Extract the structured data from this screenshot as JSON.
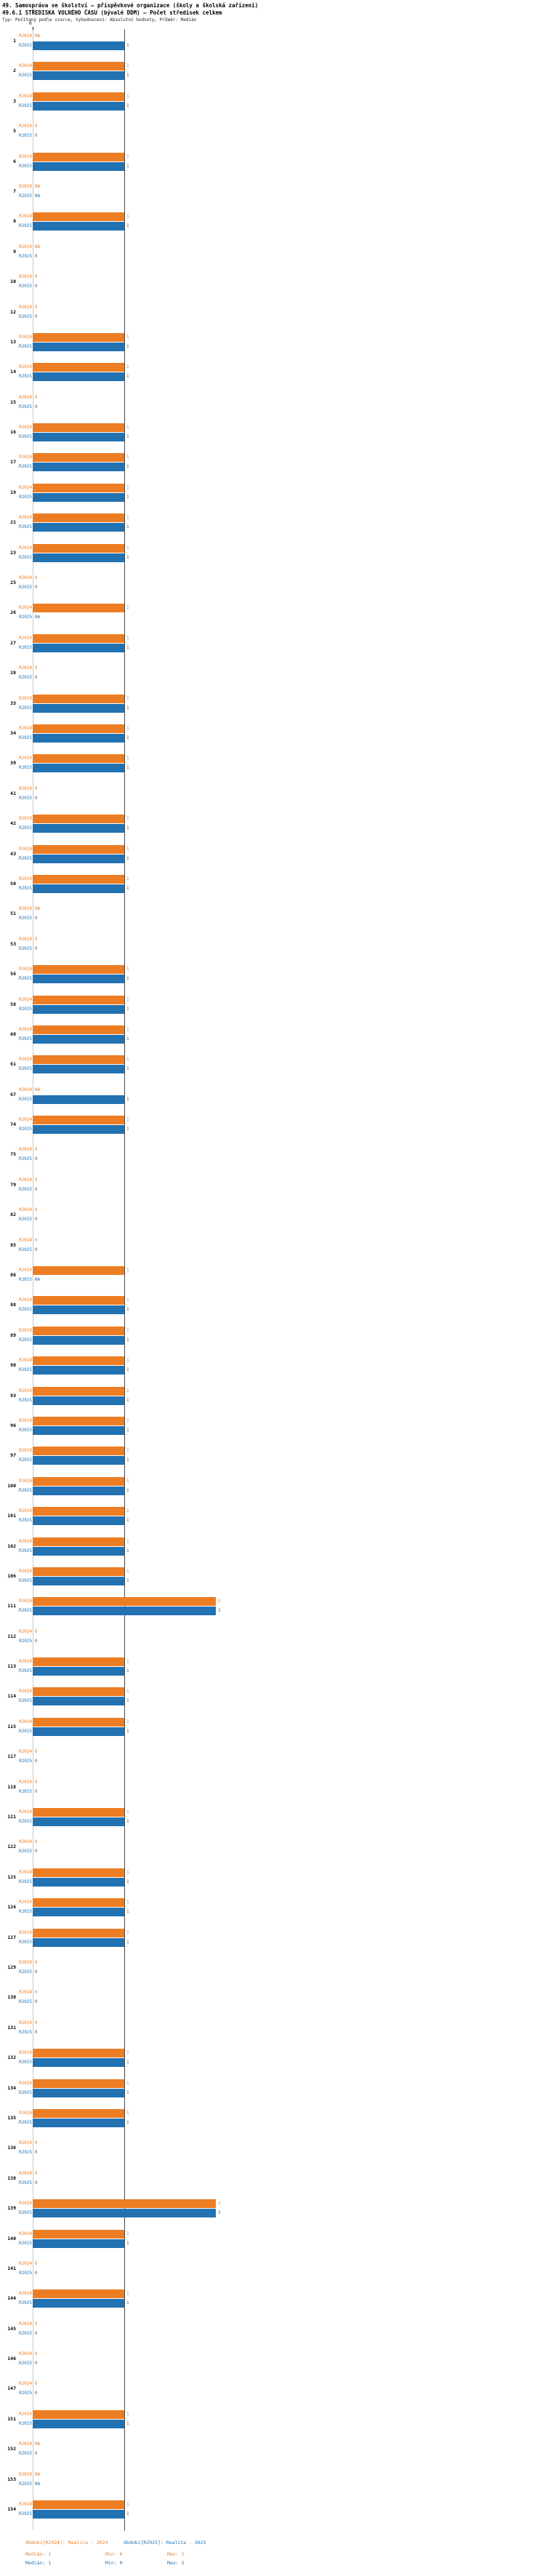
{
  "header": {
    "title_line1": "49. Samospráva ve školství – příspěvkové organizace (školy a školská zařízení)",
    "title_line2": "49.6.1 STŘEDISKA VOLNÉHO ČASU (bývalé DDM) – Počet středisek celkem",
    "meta_line": "Typ: Počítaný podle vzorce, Vyhodnocení: Absolutní hodnoty, Průměr: Medián"
  },
  "chart_data": {
    "type": "bar",
    "orientation": "horizontal",
    "title": "49.6.1 STŘEDISKA VOLNÉHO ČASU (bývalé DDM) – Počet středisek celkem",
    "axis": {
      "tick_label": "0",
      "xlim": [
        0,
        2
      ],
      "median_reference": 1,
      "grid": false
    },
    "series_meta": [
      {
        "key": "R2024",
        "label": "R2024",
        "color": "#ed7d23",
        "period_label": "Období[R2024]: Realita - 2024",
        "median": 1,
        "min": 0,
        "max": 2
      },
      {
        "key": "R2025",
        "label": "R2025",
        "color": "#2272b2",
        "period_label": "Období[R2025]: Realita - 2025",
        "median": 1,
        "min": 0,
        "max": 2
      }
    ],
    "rows": [
      {
        "id": "1",
        "R2024": "NA",
        "R2025": 1
      },
      {
        "id": "2",
        "R2024": 1,
        "R2025": 1
      },
      {
        "id": "3",
        "R2024": 1,
        "R2025": 1
      },
      {
        "id": "5",
        "R2024": 0,
        "R2025": 0
      },
      {
        "id": "6",
        "R2024": 1,
        "R2025": 1
      },
      {
        "id": "7",
        "R2024": "NA",
        "R2025": "NA"
      },
      {
        "id": "8",
        "R2024": 1,
        "R2025": 1
      },
      {
        "id": "9",
        "R2024": "NA",
        "R2025": 0
      },
      {
        "id": "10",
        "R2024": 0,
        "R2025": 0
      },
      {
        "id": "12",
        "R2024": 0,
        "R2025": 0
      },
      {
        "id": "13",
        "R2024": 1,
        "R2025": 1
      },
      {
        "id": "14",
        "R2024": 1,
        "R2025": 1
      },
      {
        "id": "15",
        "R2024": 0,
        "R2025": 0
      },
      {
        "id": "16",
        "R2024": 1,
        "R2025": 1
      },
      {
        "id": "17",
        "R2024": 1,
        "R2025": 1
      },
      {
        "id": "19",
        "R2024": 1,
        "R2025": 1
      },
      {
        "id": "21",
        "R2024": 1,
        "R2025": 1
      },
      {
        "id": "23",
        "R2024": 1,
        "R2025": 1
      },
      {
        "id": "25",
        "R2024": 0,
        "R2025": 0
      },
      {
        "id": "26",
        "R2024": 1,
        "R2025": "NA"
      },
      {
        "id": "27",
        "R2024": 1,
        "R2025": 1
      },
      {
        "id": "28",
        "R2024": 0,
        "R2025": 0
      },
      {
        "id": "33",
        "R2024": 1,
        "R2025": 1
      },
      {
        "id": "34",
        "R2024": 1,
        "R2025": 1
      },
      {
        "id": "39",
        "R2024": 1,
        "R2025": 1
      },
      {
        "id": "41",
        "R2024": 0,
        "R2025": 0
      },
      {
        "id": "42",
        "R2024": 1,
        "R2025": 1
      },
      {
        "id": "43",
        "R2024": 1,
        "R2025": 1
      },
      {
        "id": "50",
        "R2024": 1,
        "R2025": 1
      },
      {
        "id": "51",
        "R2024": "NA",
        "R2025": 0
      },
      {
        "id": "53",
        "R2024": 0,
        "R2025": 0
      },
      {
        "id": "56",
        "R2024": 1,
        "R2025": 1
      },
      {
        "id": "58",
        "R2024": 1,
        "R2025": 1
      },
      {
        "id": "60",
        "R2024": 1,
        "R2025": 1
      },
      {
        "id": "61",
        "R2024": 1,
        "R2025": 1
      },
      {
        "id": "67",
        "R2024": "NA",
        "R2025": 1
      },
      {
        "id": "74",
        "R2024": 1,
        "R2025": 1
      },
      {
        "id": "75",
        "R2024": 0,
        "R2025": 0
      },
      {
        "id": "79",
        "R2024": 0,
        "R2025": 0
      },
      {
        "id": "82",
        "R2024": 0,
        "R2025": 0
      },
      {
        "id": "85",
        "R2024": 0,
        "R2025": 0
      },
      {
        "id": "86",
        "R2024": 1,
        "R2025": "NA"
      },
      {
        "id": "88",
        "R2024": 1,
        "R2025": 1
      },
      {
        "id": "89",
        "R2024": 1,
        "R2025": 1
      },
      {
        "id": "90",
        "R2024": 1,
        "R2025": 1
      },
      {
        "id": "93",
        "R2024": 1,
        "R2025": 1
      },
      {
        "id": "96",
        "R2024": 1,
        "R2025": 1
      },
      {
        "id": "97",
        "R2024": 1,
        "R2025": 1
      },
      {
        "id": "100",
        "R2024": 1,
        "R2025": 1
      },
      {
        "id": "101",
        "R2024": 1,
        "R2025": 1
      },
      {
        "id": "102",
        "R2024": 1,
        "R2025": 1
      },
      {
        "id": "106",
        "R2024": 1,
        "R2025": 1
      },
      {
        "id": "111",
        "R2024": 2,
        "R2025": 2
      },
      {
        "id": "112",
        "R2024": 0,
        "R2025": 0
      },
      {
        "id": "113",
        "R2024": 1,
        "R2025": 1
      },
      {
        "id": "114",
        "R2024": 1,
        "R2025": 1
      },
      {
        "id": "115",
        "R2024": 1,
        "R2025": 1
      },
      {
        "id": "117",
        "R2024": 0,
        "R2025": 0
      },
      {
        "id": "118",
        "R2024": 0,
        "R2025": 0
      },
      {
        "id": "121",
        "R2024": 1,
        "R2025": 1
      },
      {
        "id": "122",
        "R2024": 0,
        "R2025": 0
      },
      {
        "id": "125",
        "R2024": 1,
        "R2025": 1
      },
      {
        "id": "126",
        "R2024": 1,
        "R2025": 1
      },
      {
        "id": "127",
        "R2024": 1,
        "R2025": 1
      },
      {
        "id": "129",
        "R2024": 0,
        "R2025": 0
      },
      {
        "id": "130",
        "R2024": 0,
        "R2025": 0
      },
      {
        "id": "131",
        "R2024": 0,
        "R2025": 0
      },
      {
        "id": "132",
        "R2024": 1,
        "R2025": 1
      },
      {
        "id": "134",
        "R2024": 1,
        "R2025": 1
      },
      {
        "id": "135",
        "R2024": 1,
        "R2025": 1
      },
      {
        "id": "136",
        "R2024": 0,
        "R2025": 0
      },
      {
        "id": "138",
        "R2024": 0,
        "R2025": 0
      },
      {
        "id": "139",
        "R2024": 2,
        "R2025": 2
      },
      {
        "id": "140",
        "R2024": 1,
        "R2025": 1
      },
      {
        "id": "141",
        "R2024": 0,
        "R2025": 0
      },
      {
        "id": "144",
        "R2024": 1,
        "R2025": 1
      },
      {
        "id": "145",
        "R2024": 0,
        "R2025": 0
      },
      {
        "id": "146",
        "R2024": 0,
        "R2025": 0
      },
      {
        "id": "147",
        "R2024": 0,
        "R2025": 0
      },
      {
        "id": "151",
        "R2024": 1,
        "R2025": 1
      },
      {
        "id": "152",
        "R2024": "NA",
        "R2025": 0
      },
      {
        "id": "153",
        "R2024": "NA",
        "R2025": "NA"
      },
      {
        "id": "154",
        "R2024": 1,
        "R2025": 1
      }
    ]
  },
  "footer": {
    "legend_r2024": "Období[R2024]: Realita - 2024",
    "legend_r2025": "Období[R2025]: Realita - 2025",
    "stats_r2024": {
      "median": "Medián: 1",
      "min": "Min: 0",
      "max": "Max: 2"
    },
    "stats_r2025": {
      "median": "Medián: 1",
      "min": "Min: 0",
      "max": "Max: 2"
    }
  }
}
